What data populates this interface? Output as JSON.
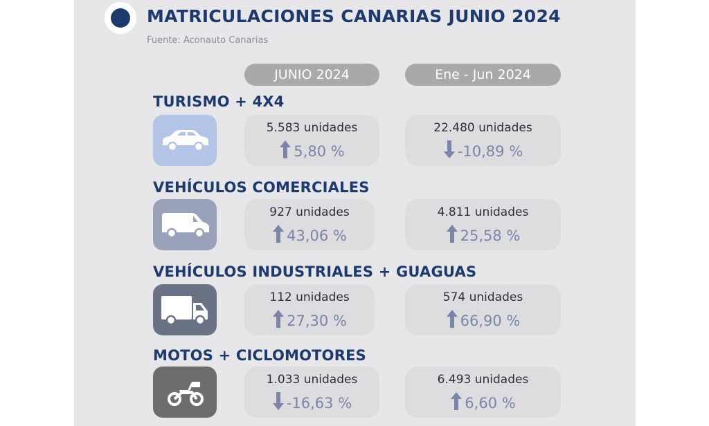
{
  "title": "MATRICULACIONES CANARIAS JUNIO 2024",
  "source": "Fuente: Aconauto Canarias",
  "columns": [
    "JUNIO 2024",
    "Ene - Jun 2024"
  ],
  "colors": {
    "title": "#1d3a6e",
    "arrow": "#7986a8",
    "pill": "#a9a9aa"
  },
  "categories": [
    {
      "name": "TURISMO + 4X4",
      "icon": "car-icon",
      "june": {
        "units": "5.583 unidades",
        "change": "5,80 %",
        "trend": "up"
      },
      "ytd": {
        "units": "22.480 unidades",
        "change": "-10,89 %",
        "trend": "down"
      }
    },
    {
      "name": "VEHÍCULOS COMERCIALES",
      "icon": "van-icon",
      "june": {
        "units": "927 unidades",
        "change": "43,06 %",
        "trend": "up"
      },
      "ytd": {
        "units": "4.811 unidades",
        "change": "25,58 %",
        "trend": "up"
      }
    },
    {
      "name": "VEHÍCULOS INDUSTRIALES + GUAGUAS",
      "icon": "truck-icon",
      "june": {
        "units": "112 unidades",
        "change": "27,30 %",
        "trend": "up"
      },
      "ytd": {
        "units": "574 unidades",
        "change": "66,90 %",
        "trend": "up"
      }
    },
    {
      "name": "MOTOS + CICLOMOTORES",
      "icon": "motorcycle-icon",
      "june": {
        "units": "1.033 unidades",
        "change": "-16,63 %",
        "trend": "down"
      },
      "ytd": {
        "units": "6.493 unidades",
        "change": "6,60 %",
        "trend": "up"
      }
    }
  ]
}
